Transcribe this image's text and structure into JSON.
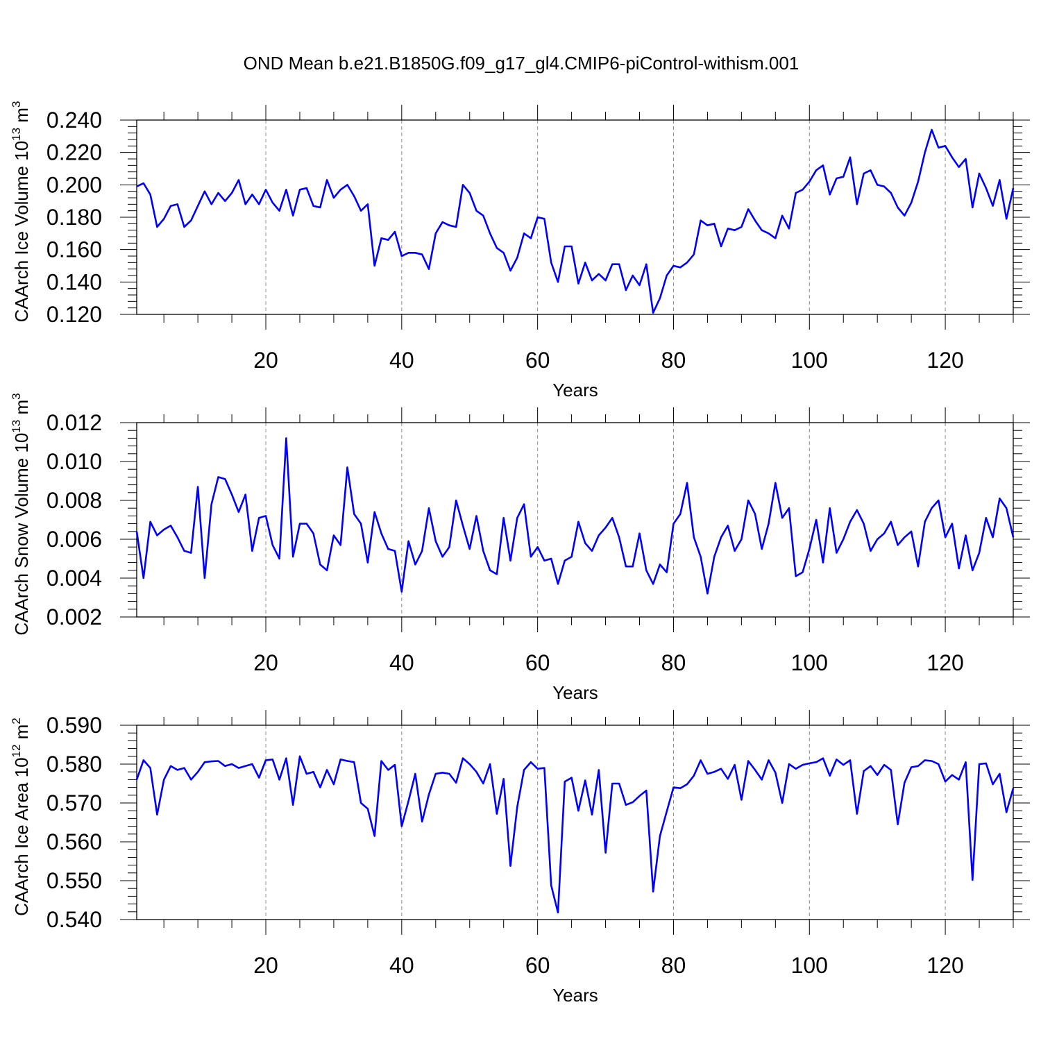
{
  "chart_title": "OND Mean b.e21.B1850G.f09_g17_gl4.CMIP6-piControl-withism.001",
  "line_color": "#0000ff",
  "chart_data": [
    {
      "type": "line",
      "id": "ice-volume",
      "ylabel_main": "CAArch Ice Volume 10",
      "ylabel_exp": "13",
      "ylabel_unit": " m",
      "ylabel_unit_exp": "3",
      "xlabel": "Years",
      "xlim": [
        1,
        130
      ],
      "ylim": [
        0.12,
        0.24
      ],
      "yticks": [
        0.12,
        0.14,
        0.16,
        0.18,
        0.2,
        0.22,
        0.24
      ],
      "ytick_labels": [
        "0.120",
        "0.140",
        "0.160",
        "0.180",
        "0.200",
        "0.220",
        "0.240"
      ],
      "xticks": [
        20,
        40,
        60,
        80,
        100,
        120
      ],
      "xtick_labels": [
        "20",
        "40",
        "60",
        "80",
        "100",
        "120"
      ],
      "x_start": 1,
      "values": [
        0.199,
        0.201,
        0.194,
        0.174,
        0.179,
        0.187,
        0.188,
        0.174,
        0.178,
        0.187,
        0.196,
        0.188,
        0.195,
        0.19,
        0.195,
        0.203,
        0.188,
        0.194,
        0.188,
        0.197,
        0.189,
        0.184,
        0.197,
        0.181,
        0.197,
        0.198,
        0.187,
        0.186,
        0.203,
        0.192,
        0.197,
        0.2,
        0.193,
        0.184,
        0.188,
        0.15,
        0.167,
        0.166,
        0.171,
        0.156,
        0.158,
        0.158,
        0.157,
        0.148,
        0.17,
        0.177,
        0.175,
        0.174,
        0.2,
        0.195,
        0.184,
        0.181,
        0.17,
        0.161,
        0.158,
        0.147,
        0.155,
        0.17,
        0.167,
        0.18,
        0.179,
        0.152,
        0.14,
        0.162,
        0.162,
        0.139,
        0.152,
        0.141,
        0.145,
        0.141,
        0.151,
        0.151,
        0.135,
        0.144,
        0.138,
        0.151,
        0.121,
        0.13,
        0.144,
        0.15,
        0.149,
        0.152,
        0.157,
        0.178,
        0.175,
        0.176,
        0.162,
        0.173,
        0.172,
        0.174,
        0.185,
        0.178,
        0.172,
        0.17,
        0.167,
        0.181,
        0.173,
        0.195,
        0.197,
        0.202,
        0.209,
        0.212,
        0.194,
        0.204,
        0.205,
        0.217,
        0.188,
        0.207,
        0.209,
        0.2,
        0.199,
        0.195,
        0.186,
        0.181,
        0.189,
        0.202,
        0.22,
        0.234,
        0.223,
        0.224,
        0.217,
        0.211,
        0.216,
        0.186,
        0.207,
        0.198,
        0.187,
        0.203,
        0.179,
        0.198
      ]
    },
    {
      "type": "line",
      "id": "snow-volume",
      "ylabel_main": "CAArch Snow Volume 10",
      "ylabel_exp": "13",
      "ylabel_unit": " m",
      "ylabel_unit_exp": "3",
      "xlabel": "Years",
      "xlim": [
        1,
        130
      ],
      "ylim": [
        0.002,
        0.012
      ],
      "yticks": [
        0.002,
        0.004,
        0.006,
        0.008,
        0.01,
        0.012
      ],
      "ytick_labels": [
        "0.002",
        "0.004",
        "0.006",
        "0.008",
        "0.010",
        "0.012"
      ],
      "xticks": [
        20,
        40,
        60,
        80,
        100,
        120
      ],
      "xtick_labels": [
        "20",
        "40",
        "60",
        "80",
        "100",
        "120"
      ],
      "x_start": 1,
      "values": [
        0.0064,
        0.004,
        0.0069,
        0.0062,
        0.0065,
        0.0067,
        0.0061,
        0.0054,
        0.0053,
        0.0087,
        0.004,
        0.0078,
        0.0092,
        0.0091,
        0.0083,
        0.0074,
        0.0083,
        0.0054,
        0.0071,
        0.0072,
        0.0057,
        0.005,
        0.0112,
        0.0051,
        0.0068,
        0.0068,
        0.0063,
        0.0047,
        0.0044,
        0.0062,
        0.0057,
        0.0097,
        0.0073,
        0.0068,
        0.0048,
        0.0074,
        0.0063,
        0.0055,
        0.0054,
        0.0033,
        0.0059,
        0.0047,
        0.0054,
        0.0076,
        0.0059,
        0.0051,
        0.0056,
        0.008,
        0.0067,
        0.0055,
        0.0072,
        0.0054,
        0.0044,
        0.0042,
        0.0071,
        0.0049,
        0.0071,
        0.0078,
        0.0051,
        0.0056,
        0.0049,
        0.005,
        0.0037,
        0.0049,
        0.0051,
        0.0069,
        0.0058,
        0.0054,
        0.0062,
        0.0066,
        0.0071,
        0.0061,
        0.0046,
        0.0046,
        0.0063,
        0.0044,
        0.0037,
        0.0047,
        0.0043,
        0.0068,
        0.0073,
        0.0089,
        0.0061,
        0.0051,
        0.0032,
        0.0051,
        0.0061,
        0.0067,
        0.0054,
        0.006,
        0.008,
        0.0073,
        0.0055,
        0.0068,
        0.0089,
        0.0071,
        0.0076,
        0.0041,
        0.0043,
        0.0055,
        0.007,
        0.0048,
        0.0076,
        0.0053,
        0.006,
        0.0069,
        0.0075,
        0.0068,
        0.0054,
        0.006,
        0.0063,
        0.0069,
        0.0057,
        0.0061,
        0.0064,
        0.0046,
        0.0069,
        0.0076,
        0.008,
        0.0061,
        0.0068,
        0.0045,
        0.0062,
        0.0044,
        0.0053,
        0.0071,
        0.0061,
        0.0081,
        0.0076,
        0.0061
      ]
    },
    {
      "type": "line",
      "id": "ice-area",
      "ylabel_main": "CAArch Ice Area 10",
      "ylabel_exp": "12",
      "ylabel_unit": " m",
      "ylabel_unit_exp": "2",
      "xlabel": "Years",
      "xlim": [
        1,
        130
      ],
      "ylim": [
        0.54,
        0.59
      ],
      "yticks": [
        0.54,
        0.55,
        0.56,
        0.57,
        0.58,
        0.59
      ],
      "ytick_labels": [
        "0.540",
        "0.550",
        "0.560",
        "0.570",
        "0.580",
        "0.590"
      ],
      "xticks": [
        20,
        40,
        60,
        80,
        100,
        120
      ],
      "xtick_labels": [
        "20",
        "40",
        "60",
        "80",
        "100",
        "120"
      ],
      "x_start": 1,
      "values": [
        0.576,
        0.581,
        0.579,
        0.567,
        0.576,
        0.5795,
        0.5785,
        0.579,
        0.576,
        0.578,
        0.5805,
        0.5807,
        0.5808,
        0.5795,
        0.58,
        0.579,
        0.5795,
        0.58,
        0.5765,
        0.581,
        0.5812,
        0.576,
        0.5815,
        0.5695,
        0.582,
        0.5775,
        0.578,
        0.574,
        0.5785,
        0.5748,
        0.5812,
        0.5808,
        0.5805,
        0.57,
        0.5685,
        0.5615,
        0.5808,
        0.5785,
        0.5798,
        0.564,
        0.5705,
        0.5775,
        0.5652,
        0.5722,
        0.5775,
        0.5778,
        0.5775,
        0.5752,
        0.5815,
        0.58,
        0.578,
        0.575,
        0.58,
        0.5672,
        0.5762,
        0.5538,
        0.569,
        0.5785,
        0.5805,
        0.5788,
        0.579,
        0.5488,
        0.5418,
        0.5755,
        0.5765,
        0.568,
        0.5758,
        0.567,
        0.5785,
        0.5572,
        0.575,
        0.575,
        0.5695,
        0.5702,
        0.5718,
        0.5732,
        0.5472,
        0.5615,
        0.5678,
        0.574,
        0.5738,
        0.5748,
        0.577,
        0.581,
        0.5775,
        0.578,
        0.5788,
        0.5762,
        0.5798,
        0.5708,
        0.5808,
        0.5785,
        0.576,
        0.581,
        0.5778,
        0.57,
        0.58,
        0.5788,
        0.5798,
        0.5802,
        0.5805,
        0.5815,
        0.577,
        0.5812,
        0.5798,
        0.581,
        0.5672,
        0.5782,
        0.5795,
        0.5772,
        0.5798,
        0.5785,
        0.5645,
        0.5752,
        0.5792,
        0.5795,
        0.581,
        0.5808,
        0.58,
        0.5755,
        0.5772,
        0.576,
        0.5805,
        0.5502,
        0.58,
        0.5802,
        0.5748,
        0.5775,
        0.5676,
        0.5738
      ]
    }
  ]
}
